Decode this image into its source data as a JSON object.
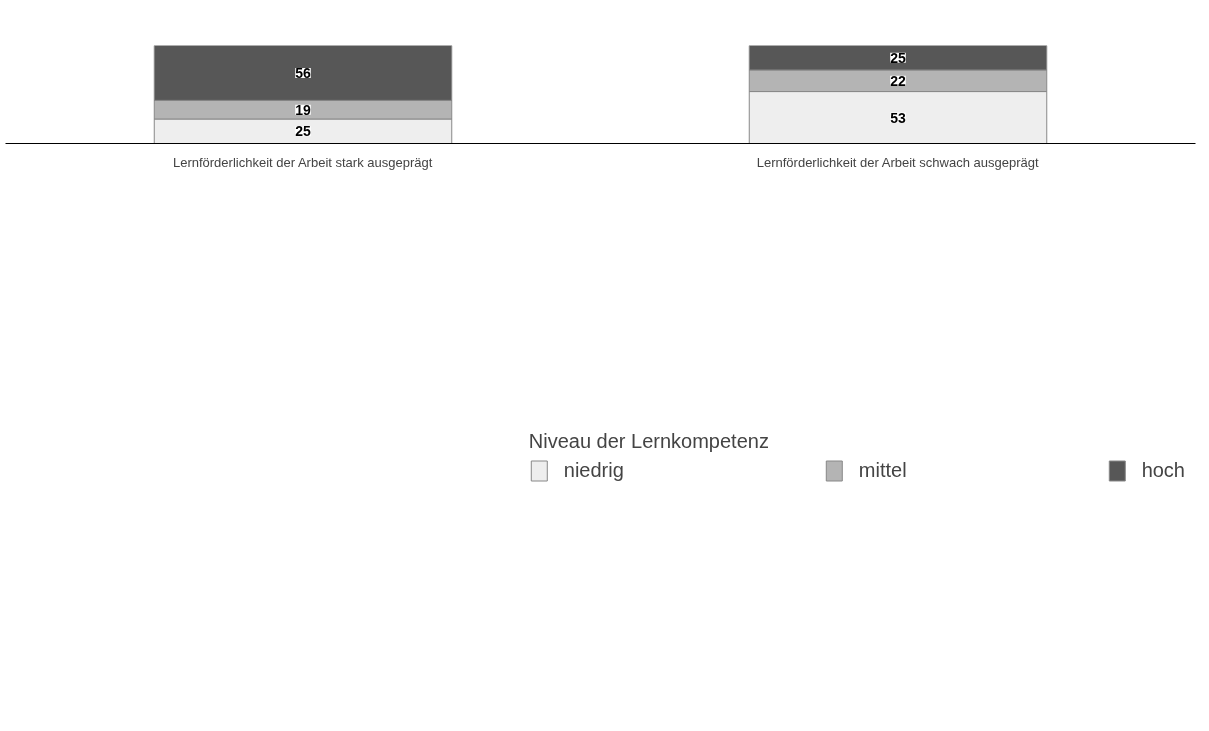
{
  "chart_data": {
    "type": "bar",
    "stacked": true,
    "categories": [
      "Lernförderlichkeit der Arbeit stark ausgeprägt",
      "Lernförderlichkeit der Arbeit schwach ausgeprägt"
    ],
    "series": [
      {
        "name": "niedrig",
        "color": "#eeeeee",
        "values": [
          25,
          53
        ]
      },
      {
        "name": "mittel",
        "color": "#b4b4b4",
        "values": [
          19,
          22
        ]
      },
      {
        "name": "hoch",
        "color": "#575757",
        "values": [
          56,
          25
        ]
      }
    ],
    "data_labels": true,
    "legend": "bottom",
    "legend_title": "Niveau der Lernkompetenz",
    "grid": false
  }
}
